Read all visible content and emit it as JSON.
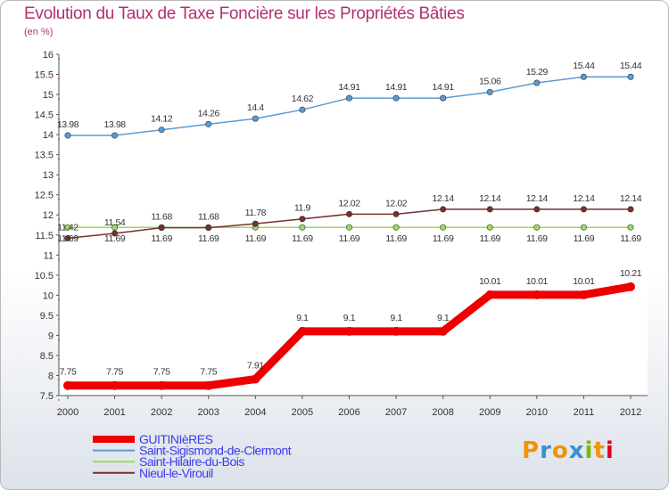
{
  "chart_data": {
    "type": "line",
    "title": "Evolution du Taux de Taxe Foncière sur les Propriétés Bâties",
    "unit_label": "(en %)",
    "x": [
      "2000",
      "2001",
      "2002",
      "2003",
      "2004",
      "2005",
      "2006",
      "2007",
      "2008",
      "2009",
      "2010",
      "2011",
      "2012"
    ],
    "ylim": [
      7.5,
      16
    ],
    "yticks": [
      "7.5",
      "8",
      "8.5",
      "9",
      "9.5",
      "10",
      "10.5",
      "11",
      "11.5",
      "12",
      "12.5",
      "13",
      "13.5",
      "14",
      "14.5",
      "15",
      "15.5",
      "16"
    ],
    "grid": false,
    "legend_position": "bottom-left",
    "series": [
      {
        "name": "GUITINIèRES",
        "color": "#ee0000",
        "values": [
          7.75,
          7.75,
          7.75,
          7.75,
          7.91,
          9.1,
          9.1,
          9.1,
          9.1,
          10.01,
          10.01,
          10.01,
          10.21
        ],
        "labels": [
          "7.75",
          "7.75",
          "7.75",
          "7.75",
          "7.91",
          "9.1",
          "9.1",
          "9.1",
          "9.1",
          "10.01",
          "10.01",
          "10.01",
          "10.21"
        ]
      },
      {
        "name": "Saint-Sigismond-de-Clermont",
        "color": "#5b9bd5",
        "values": [
          13.98,
          13.98,
          14.12,
          14.26,
          14.4,
          14.62,
          14.91,
          14.91,
          14.91,
          15.06,
          15.29,
          15.44,
          15.44
        ],
        "labels": [
          "13.98",
          "13.98",
          "14.12",
          "14.26",
          "14.4",
          "14.62",
          "14.91",
          "14.91",
          "14.91",
          "15.06",
          "15.29",
          "15.44",
          "15.44"
        ]
      },
      {
        "name": "Saint-Hilaire-du-Bois",
        "color": "#99dd55",
        "values": [
          11.69,
          11.69,
          11.69,
          11.69,
          11.69,
          11.69,
          11.69,
          11.69,
          11.69,
          11.69,
          11.69,
          11.69,
          11.69
        ],
        "labels": [
          "11.69",
          "11.69",
          "11.69",
          "11.69",
          "11.69",
          "11.69",
          "11.69",
          "11.69",
          "11.69",
          "11.69",
          "11.69",
          "11.69",
          "11.69"
        ]
      },
      {
        "name": "Nieul-le-Virouil",
        "color": "#7a2e2e",
        "values": [
          11.42,
          11.54,
          11.68,
          11.68,
          11.78,
          11.9,
          12.02,
          12.02,
          12.14,
          12.14,
          12.14,
          12.14,
          12.14
        ],
        "labels": [
          "11.42",
          "11.54",
          "11.68",
          "11.68",
          "11.78",
          "11.9",
          "12.02",
          "12.02",
          "12.14",
          "12.14",
          "12.14",
          "12.14",
          "12.14"
        ]
      }
    ]
  },
  "logo": {
    "text": "Proxiti",
    "colors": [
      "#f29400",
      "#3a8fd0",
      "#f29400",
      "#3a8fd0",
      "#7ab800",
      "#f29400",
      "#e2001a"
    ]
  }
}
